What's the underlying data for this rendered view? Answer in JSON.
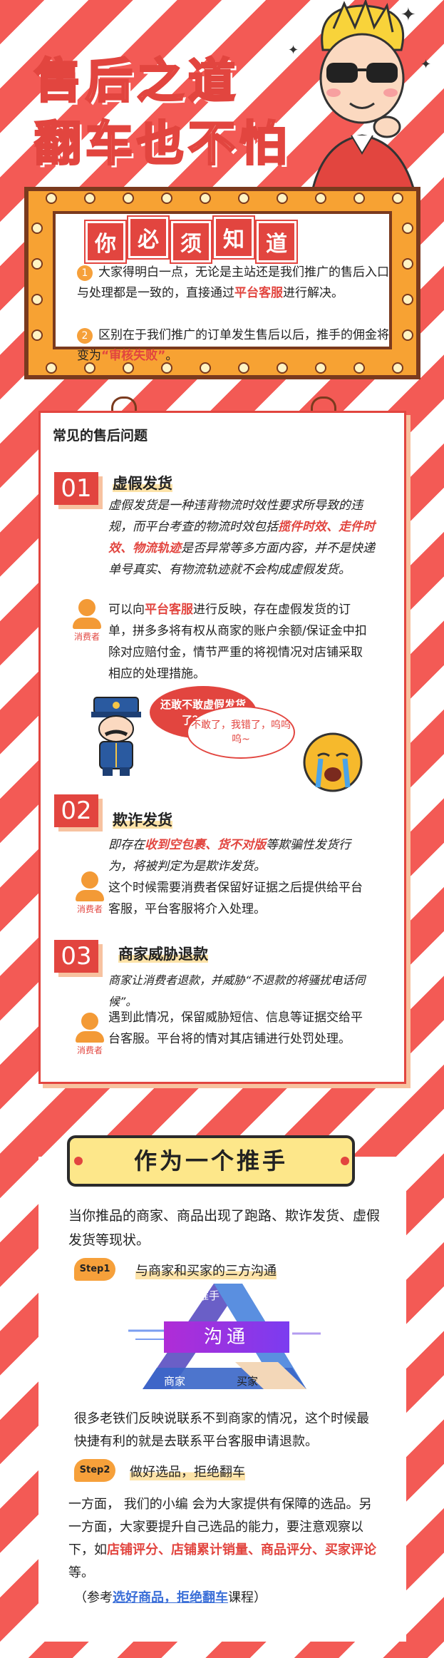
{
  "hero": {
    "line1": "售后之道",
    "line2": "翻车也不怕"
  },
  "must_know": {
    "chars": [
      "你",
      "必",
      "须",
      "知",
      "道"
    ],
    "note1_num": "1",
    "note1_a": "大家得明白一点，无论是主站还是我们推广的售后入口与处理都是一致的，直接通过",
    "note1_hl": "平台客服",
    "note1_b": "进行解决。",
    "note2_num": "2",
    "note2_a": "区别在于我们推广的订单发生售后以后，推手的佣金将变为",
    "note2_hl": "“审核失败”",
    "note2_b": "。"
  },
  "faq": {
    "heading": "常见的售后问题",
    "consumer_label": "消费者",
    "s1": {
      "num": "01",
      "title": "虚假发货",
      "desc_a": "虚假发货是一种违背物流时效性要求所导致的违规，而平台考查的物流时效包括",
      "desc_hl": "揽件时效、走件时效、物流轨迹",
      "desc_b": "是否异常等多方面内容，并不是快递单号真实、有物流轨迹就不会构成虚假发货。",
      "consumer_a": "可以向",
      "consumer_hl": "平台客服",
      "consumer_b": "进行反映，存在虚假发货的订单，拼多多将有权从商家的账户余额/保证金中扣除对应赔付金，情节严重的将视情况对店铺采取相应的处理措施。",
      "bubble_red": "还敢不敢虚假发货了？？？",
      "bubble_white": "不敢了，我错了，呜呜呜~"
    },
    "s2": {
      "num": "02",
      "title": "欺诈发货",
      "desc_a": "即存在",
      "desc_hl": "收到空包裹、货不对版",
      "desc_b": "等欺骗性发货行为，将被判定为是欺诈发货。",
      "consumer": "这个时候需要消费者保留好证据之后提供给平台客服，平台客服将介入处理。"
    },
    "s3": {
      "num": "03",
      "title": "商家威胁退款",
      "desc": "商家让消费者退款，并威胁“不退款的将骚扰电话伺候”。",
      "consumer": "遇到此情况，保留威胁短信、信息等证据交给平台客服。平台将的情对其店铺进行处罚处理。"
    }
  },
  "pusher": {
    "badge": "作为一个推手",
    "intro": "当你推品的商家、商品出现了跑路、欺诈发货、虚假发货等现状。",
    "step1_tag": "Step1",
    "step1_title": "与商家和买家的三方沟通",
    "tri_top": "推手",
    "tri_center": "沟通",
    "tri_left": "商家",
    "tri_right": "买家",
    "step1_text": "很多老铁们反映说联系不到商家的情况，这个时候最快捷有利的就是去联系平台客服申请退款。",
    "step2_tag": "Step2",
    "step2_title": "做好选品，拒绝翻车",
    "step2_a": "一方面， 我们的小编 会为大家提供有保障的选品。另一方面，大家要提升自己选品的能力，要注意观察以下，如",
    "step2_hl": "店铺评分、店铺累计销量、商品评分、买家评论",
    "step2_b": "等。",
    "ref_a": "（参考",
    "ref_link": "选好商品，拒绝翻车",
    "ref_b": "课程）"
  }
}
